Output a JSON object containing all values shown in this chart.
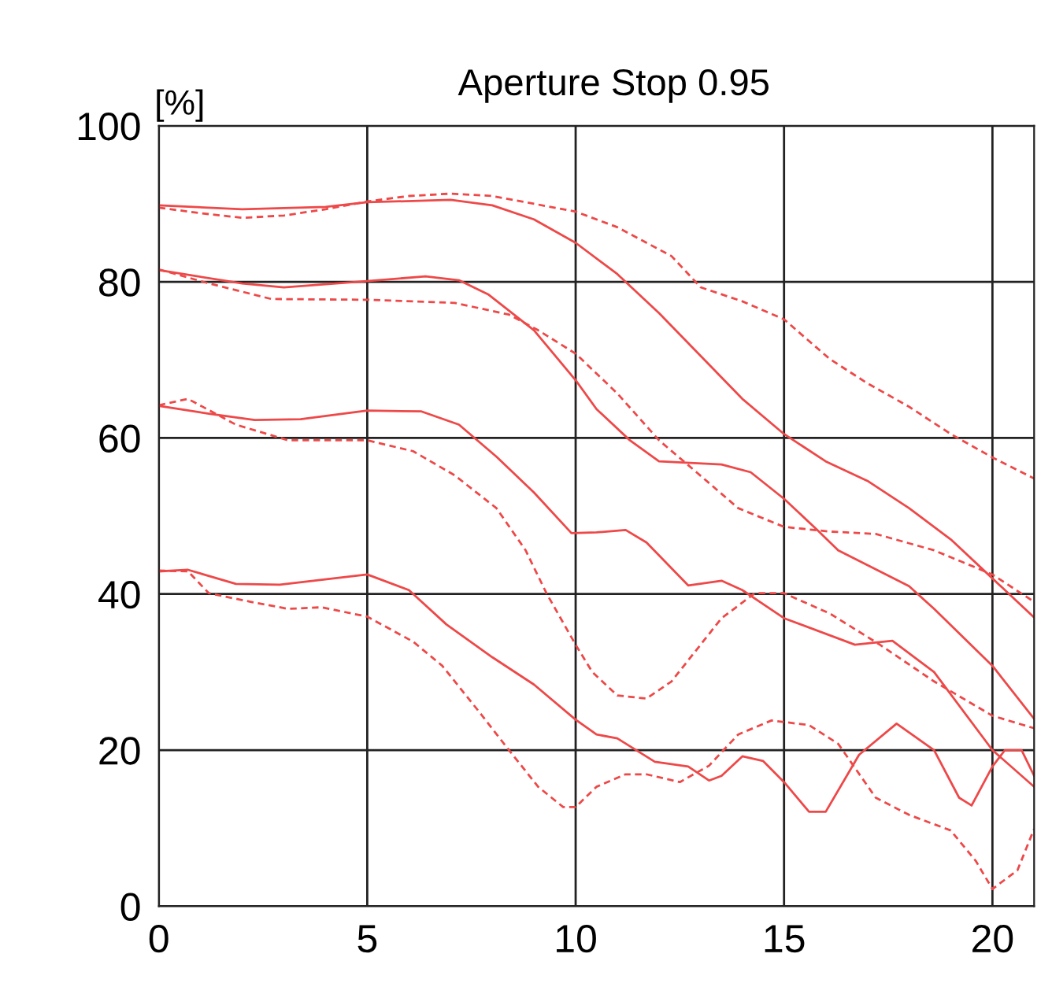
{
  "chart_data": {
    "type": "line",
    "title": "Aperture Stop 0.95",
    "ylabel": "[%]",
    "xlim": [
      0,
      21
    ],
    "ylim": [
      0,
      100
    ],
    "xticks": [
      0,
      5,
      10,
      15,
      20
    ],
    "yticks": [
      0,
      20,
      40,
      60,
      80,
      100
    ],
    "grid": true,
    "legend": false,
    "marker": "none",
    "series": [
      {
        "color": "#ee4848",
        "line_style": "solid",
        "x": [
          0,
          2,
          4,
          5,
          7,
          8,
          9,
          10,
          11,
          12,
          13,
          14,
          15,
          16,
          17,
          18,
          19,
          20,
          21
        ],
        "values": [
          89.8,
          89.3,
          89.6,
          90.2,
          90.5,
          89.8,
          88,
          85,
          81,
          76,
          70.5,
          65,
          60.5,
          57,
          54.5,
          51,
          47,
          42,
          37
        ]
      },
      {
        "color": "#ee4848",
        "line_style": "dashed",
        "x": [
          0,
          1,
          2,
          3,
          4,
          5,
          6,
          7,
          8,
          9,
          10,
          11,
          12.3,
          13,
          14,
          15,
          16.1,
          17,
          18,
          19,
          20,
          21
        ],
        "values": [
          89.5,
          88.8,
          88.2,
          88.5,
          89.3,
          90.3,
          91,
          91.3,
          91,
          90,
          89,
          87,
          83.3,
          79.3,
          77.5,
          75.2,
          70.1,
          67,
          64,
          60.5,
          57.5,
          54.8
        ]
      },
      {
        "color": "#ee4848",
        "line_style": "solid",
        "x": [
          0,
          2,
          3,
          5,
          6.4,
          7.2,
          7.9,
          9,
          10,
          10.5,
          11.3,
          12,
          13.5,
          14.2,
          15,
          15.8,
          16.3,
          17.3,
          18,
          18.6,
          20,
          21
        ],
        "values": [
          81.5,
          79.8,
          79.3,
          80.1,
          80.7,
          80.2,
          78.4,
          73.8,
          67.4,
          63.7,
          59.7,
          57,
          56.6,
          55.6,
          52.2,
          48.2,
          45.6,
          42.9,
          41,
          38.1,
          30.8,
          24
        ]
      },
      {
        "color": "#ee4848",
        "line_style": "dashed",
        "x": [
          0,
          1.2,
          2.7,
          5,
          7.1,
          8.4,
          9.1,
          10,
          11,
          12,
          12.9,
          13.9,
          15,
          16.1,
          17.2,
          18.6,
          20,
          21
        ],
        "values": [
          81.6,
          79.8,
          77.8,
          77.7,
          77.3,
          75.8,
          73.8,
          70.8,
          65.7,
          59.7,
          55.6,
          51,
          48.6,
          48,
          47.7,
          45.6,
          42.5,
          39
        ]
      },
      {
        "color": "#ee4848",
        "line_style": "solid",
        "x": [
          0,
          1.2,
          2.3,
          3.4,
          5,
          6.3,
          7.2,
          8.1,
          9,
          9.9,
          10.5,
          11.2,
          11.7,
          12.7,
          13.5,
          14,
          15,
          16.7,
          17.6,
          18.6,
          20,
          21
        ],
        "values": [
          64.1,
          63.1,
          62.3,
          62.4,
          63.5,
          63.4,
          61.7,
          57.6,
          53,
          47.8,
          47.9,
          48.2,
          46.6,
          41.1,
          41.7,
          40.5,
          36.9,
          33.5,
          34,
          30,
          20,
          15.3
        ]
      },
      {
        "color": "#ee4848",
        "line_style": "dashed",
        "x": [
          0,
          0.7,
          1.85,
          3.1,
          5,
          6.1,
          7.1,
          8.1,
          8.8,
          9.3,
          10,
          10.4,
          11,
          11.7,
          12.3,
          13.5,
          14.3,
          15,
          16.1,
          17.3,
          18.6,
          20,
          21
        ],
        "values": [
          64.2,
          65,
          61.7,
          59.7,
          59.7,
          58.3,
          55.2,
          51,
          45.6,
          40.1,
          33.5,
          30,
          27,
          26.6,
          28.8,
          36.9,
          40.1,
          40.1,
          37.5,
          33.5,
          28.8,
          24.4,
          22.8
        ]
      },
      {
        "color": "#ee4848",
        "line_style": "solid",
        "x": [
          0,
          0.7,
          1.85,
          2.9,
          5,
          6,
          6.9,
          8,
          9,
          10,
          10.5,
          11,
          11.9,
          12.7,
          13.2,
          13.5,
          14,
          14.5,
          15,
          15.6,
          16,
          16.8,
          17.7,
          18.6,
          19.2,
          19.5,
          20,
          20.3,
          20.7,
          21
        ],
        "values": [
          42.9,
          43.1,
          41.3,
          41.2,
          42.5,
          40.5,
          36.1,
          31.9,
          28.4,
          23.9,
          22,
          21.5,
          18.5,
          17.9,
          16.1,
          16.7,
          19.2,
          18.6,
          15.9,
          12.1,
          12.1,
          19.4,
          23.4,
          20,
          13.9,
          12.9,
          17.9,
          20,
          20,
          16.7
        ]
      },
      {
        "color": "#ee4848",
        "line_style": "dashed",
        "x": [
          0,
          0.7,
          1.2,
          2.2,
          3.1,
          3.9,
          5,
          6.1,
          6.8,
          7.7,
          8.4,
          9.1,
          9.7,
          10,
          10.5,
          11.2,
          11.7,
          12.5,
          13.2,
          13.9,
          14.7,
          15.6,
          16.3,
          17.2,
          18,
          19,
          19.6,
          20,
          20.6,
          21
        ],
        "values": [
          43,
          42.9,
          40.1,
          39,
          38.1,
          38.3,
          37.1,
          33.9,
          30.8,
          24.8,
          20,
          15.3,
          12.7,
          12.7,
          15.3,
          16.9,
          16.9,
          15.9,
          18,
          22,
          23.8,
          23.2,
          20.8,
          13.9,
          11.7,
          9.7,
          5.8,
          2.2,
          4.6,
          9.9
        ]
      }
    ]
  }
}
